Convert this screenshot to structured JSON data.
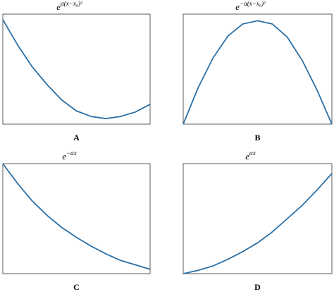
{
  "chart_data": [
    {
      "type": "line",
      "label": "A",
      "title_base": "e",
      "title_exponent": "α(x−x₀)²",
      "color": "#2a6fa6",
      "x": [
        0,
        0.1,
        0.2,
        0.3,
        0.4,
        0.5,
        0.6,
        0.7,
        0.8,
        0.9,
        1
      ],
      "values": [
        0.95,
        0.72,
        0.52,
        0.36,
        0.22,
        0.12,
        0.07,
        0.05,
        0.07,
        0.11,
        0.18
      ],
      "xlim": [
        0,
        1
      ],
      "ylim": [
        0,
        1
      ]
    },
    {
      "type": "line",
      "label": "B",
      "title_base": "e",
      "title_exponent": "−α(x−x₀)²",
      "color": "#2a6fa6",
      "x": [
        0,
        0.1,
        0.2,
        0.3,
        0.4,
        0.5,
        0.6,
        0.7,
        0.8,
        0.9,
        1
      ],
      "values": [
        0,
        0.33,
        0.6,
        0.8,
        0.91,
        0.94,
        0.91,
        0.79,
        0.58,
        0.31,
        0
      ],
      "xlim": [
        0,
        1
      ],
      "ylim": [
        0,
        1
      ]
    },
    {
      "type": "line",
      "label": "C",
      "title_base": "e",
      "title_exponent": "−αx",
      "color": "#2a6fa6",
      "x": [
        0,
        0.1,
        0.2,
        0.3,
        0.4,
        0.5,
        0.6,
        0.7,
        0.8,
        0.9,
        1
      ],
      "values": [
        1,
        0.82,
        0.66,
        0.53,
        0.42,
        0.33,
        0.25,
        0.18,
        0.12,
        0.08,
        0.04
      ],
      "xlim": [
        0,
        1
      ],
      "ylim": [
        0,
        1
      ]
    },
    {
      "type": "line",
      "label": "D",
      "title_base": "e",
      "title_exponent": "αx",
      "color": "#2a6fa6",
      "x": [
        0,
        0.1,
        0.2,
        0.3,
        0.4,
        0.5,
        0.6,
        0.7,
        0.8,
        0.9,
        1
      ],
      "values": [
        0,
        0.03,
        0.07,
        0.13,
        0.2,
        0.28,
        0.38,
        0.5,
        0.62,
        0.76,
        0.91
      ],
      "xlim": [
        0,
        1
      ],
      "ylim": [
        0,
        1
      ]
    }
  ]
}
